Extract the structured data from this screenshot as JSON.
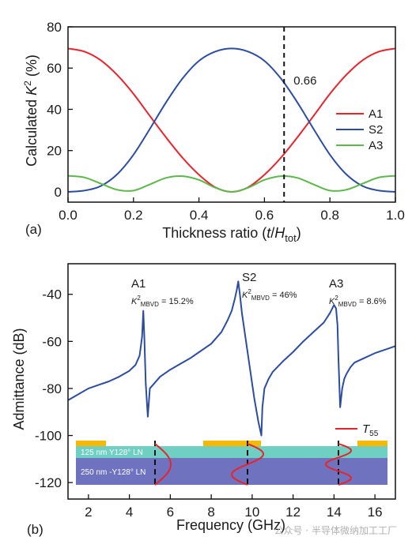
{
  "chart_data": [
    {
      "type": "line",
      "panel_label": "(a)",
      "xlabel": "Thickness ratio (t/Htot)",
      "xlabel_parts": {
        "prefix": "Thickness ratio (",
        "t": "t",
        "slash": "/",
        "H": "H",
        "sub": "tot",
        "suffix": ")"
      },
      "ylabel": "Calculated K2 (%)",
      "ylabel_parts": {
        "prefix": "Calculated ",
        "K": "K",
        "sup": "2",
        "suffix": " (%)"
      },
      "xlim": [
        0,
        1
      ],
      "ylim": [
        -5,
        80
      ],
      "xticks": [
        "0.0",
        "0.2",
        "0.4",
        "0.6",
        "0.8",
        "1.0"
      ],
      "yticks": [
        "0",
        "20",
        "40",
        "60",
        "80"
      ],
      "vline": {
        "x": 0.66,
        "label": "0.66"
      },
      "legend_position": "right",
      "series": [
        {
          "name": "A1",
          "color": "#e8232a",
          "x": [
            0,
            0.05,
            0.1,
            0.15,
            0.2,
            0.25,
            0.3,
            0.35,
            0.4,
            0.45,
            0.5,
            0.55,
            0.6,
            0.65,
            0.7,
            0.75,
            0.8,
            0.85,
            0.9,
            0.95,
            1.0
          ],
          "y": [
            69.5,
            68,
            63.8,
            56.7,
            47.5,
            36.8,
            26.3,
            16.5,
            8.3,
            2.2,
            0,
            2.2,
            8.3,
            16.5,
            26.3,
            36.8,
            47.5,
            56.7,
            63.8,
            68,
            69.5
          ]
        },
        {
          "name": "S2",
          "color": "#2b4da0",
          "x": [
            0,
            0.05,
            0.1,
            0.15,
            0.2,
            0.25,
            0.3,
            0.35,
            0.4,
            0.45,
            0.5,
            0.55,
            0.6,
            0.65,
            0.7,
            0.75,
            0.8,
            0.85,
            0.9,
            0.95,
            1.0
          ],
          "y": [
            0,
            0.6,
            2.8,
            8.5,
            18,
            30.5,
            43.5,
            55,
            63.5,
            68,
            69.5,
            68,
            63.5,
            55,
            43.5,
            30.5,
            18,
            8.5,
            2.8,
            0.6,
            0
          ]
        },
        {
          "name": "A3",
          "color": "#5cb84a",
          "x": [
            0,
            0.05,
            0.1,
            0.15,
            0.2,
            0.25,
            0.3,
            0.35,
            0.4,
            0.45,
            0.5,
            0.55,
            0.6,
            0.65,
            0.7,
            0.75,
            0.8,
            0.85,
            0.9,
            0.95,
            1.0
          ],
          "y": [
            7.8,
            7,
            4,
            1,
            0.6,
            3.6,
            6.8,
            7.6,
            5.8,
            2,
            0,
            2,
            5.8,
            7.6,
            6.8,
            3.6,
            0.6,
            1,
            4,
            7,
            7.8
          ]
        }
      ]
    },
    {
      "type": "line",
      "panel_label": "(b)",
      "xlabel": "Frequency (GHz)",
      "ylabel": "Admittance (dB)",
      "xlim": [
        1,
        17
      ],
      "ylim": [
        -127,
        -27
      ],
      "xticks": [
        "2",
        "4",
        "6",
        "8",
        "10",
        "12",
        "14",
        "16"
      ],
      "yticks": [
        "-40",
        "-60",
        "-80",
        "-100",
        "-120"
      ],
      "legend": {
        "name": "T",
        "sub": "55",
        "color": "#e8232a"
      },
      "annotations": [
        {
          "mode": "A1",
          "coupling": "15.2%",
          "k": "K",
          "sup": "2",
          "sub": "MBVD",
          "eq": " = "
        },
        {
          "mode": "S2",
          "coupling": "46%",
          "k": "K",
          "sup": "2",
          "sub": "MBVD",
          "eq": " = "
        },
        {
          "mode": "A3",
          "coupling": "8.6%",
          "k": "K",
          "sup": "2",
          "sub": "MBVD",
          "eq": " = "
        }
      ],
      "layers": [
        {
          "label": "125 nm  Y128° LN",
          "color": "#6fcfc3"
        },
        {
          "label": "250 nm -Y128° LN",
          "color": "#6f72bf"
        }
      ],
      "electrode_color": "#f6b800",
      "series": [
        {
          "name": "Admittance",
          "color": "#2b4da0",
          "x": [
            1,
            1.5,
            2,
            2.5,
            3,
            3.5,
            4,
            4.3,
            4.5,
            4.62,
            4.68,
            4.73,
            4.8,
            4.9,
            5,
            5.5,
            6,
            6.5,
            7,
            7.5,
            8,
            8.5,
            8.8,
            9,
            9.15,
            9.25,
            9.32,
            9.4,
            9.5,
            9.7,
            9.9,
            10.1,
            10.3,
            10.45,
            10.5,
            10.6,
            10.8,
            11,
            11.5,
            12,
            12.5,
            13,
            13.5,
            13.8,
            14,
            14.1,
            14.17,
            14.22,
            14.3,
            14.4,
            14.5,
            14.6,
            14.8,
            15,
            15.5,
            16,
            16.5,
            17
          ],
          "y": [
            -85,
            -82.5,
            -80,
            -78.5,
            -77,
            -75,
            -72.5,
            -70,
            -66,
            -58,
            -47,
            -58,
            -78,
            -92,
            -80,
            -75,
            -72,
            -69.5,
            -67,
            -64,
            -61,
            -56,
            -51,
            -47,
            -42,
            -38,
            -34.5,
            -40,
            -48,
            -60,
            -72,
            -84,
            -94,
            -100,
            -88,
            -80,
            -76,
            -73,
            -68.5,
            -64.5,
            -60,
            -56,
            -52,
            -48,
            -44.5,
            -46,
            -53,
            -68,
            -88,
            -80,
            -76,
            -74,
            -71,
            -69,
            -67,
            -65,
            -63.5,
            -62
          ]
        }
      ]
    }
  ],
  "watermark": "公众号 · 半导体微纳加工工厂"
}
